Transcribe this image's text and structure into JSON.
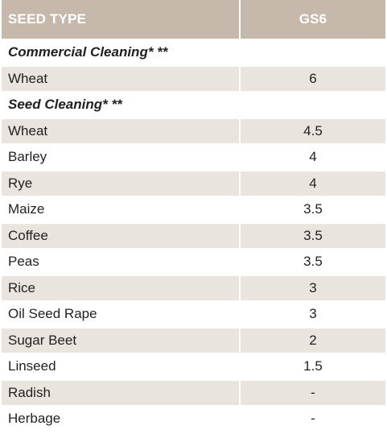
{
  "header": {
    "columns": [
      "SEED TYPE",
      "GS6"
    ]
  },
  "sections": [
    {
      "title": "Commercial Cleaning* **",
      "rows": [
        [
          "Wheat",
          "6"
        ]
      ]
    },
    {
      "title": "Seed Cleaning* **",
      "rows": [
        [
          "Wheat",
          "4.5"
        ],
        [
          "Barley",
          "4"
        ],
        [
          "Rye",
          "4"
        ],
        [
          "Maize",
          "3.5"
        ],
        [
          "Coffee",
          "3.5"
        ],
        [
          "Peas",
          "3.5"
        ],
        [
          "Rice",
          "3"
        ],
        [
          "Oil Seed Rape",
          "3"
        ],
        [
          "Sugar Beet",
          "2"
        ],
        [
          "Linseed",
          "1.5"
        ],
        [
          "Radish",
          "-"
        ],
        [
          "Herbage",
          "-"
        ]
      ]
    }
  ]
}
